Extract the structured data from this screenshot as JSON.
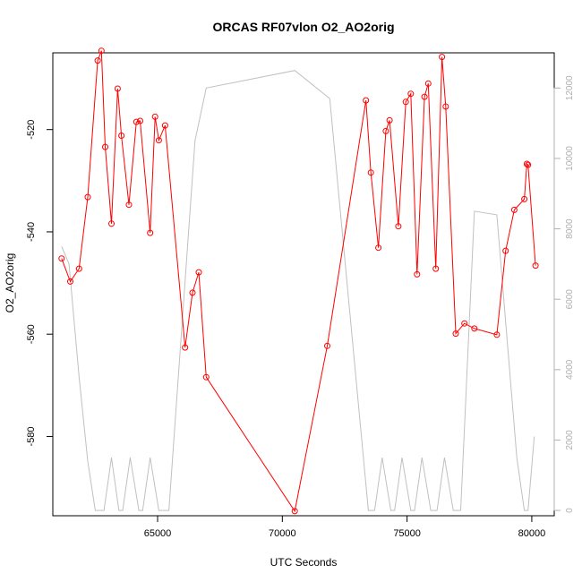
{
  "chart_data": {
    "type": "line",
    "title": "ORCAS RF07vlon O2_AO2orig",
    "xlabel": "UTC Seconds",
    "ylabel": "O2_AO2orig",
    "xlim": [
      60800,
      80900
    ],
    "ylim": [
      -595.5,
      -505.0
    ],
    "y2lim": [
      -150,
      13000
    ],
    "x_ticks": [
      65000,
      70000,
      75000,
      80000
    ],
    "y_ticks": [
      -520,
      -540,
      -560,
      -580
    ],
    "y2_ticks": [
      0,
      2000,
      4000,
      6000,
      8000,
      10000,
      12000
    ],
    "grid": false,
    "colors": {
      "primary": "#ff0000",
      "secondary": "#c0c0c0",
      "frame": "#000000"
    },
    "series": [
      {
        "axis": "left",
        "marker": "open-circle",
        "color": "#ff0000",
        "points": [
          [
            61150,
            -545.2
          ],
          [
            61500,
            -549.7
          ],
          [
            61850,
            -547.2
          ],
          [
            62200,
            -533.2
          ],
          [
            62600,
            -506.5
          ],
          [
            62750,
            -504.6
          ],
          [
            62900,
            -523.4
          ],
          [
            63150,
            -538.4
          ],
          [
            63400,
            -512.0
          ],
          [
            63550,
            -521.2
          ],
          [
            63850,
            -534.7
          ],
          [
            64150,
            -518.5
          ],
          [
            64300,
            -518.3
          ],
          [
            64700,
            -540.2
          ],
          [
            64900,
            -517.5
          ],
          [
            65050,
            -522.1
          ],
          [
            65300,
            -519.2
          ],
          [
            66100,
            -562.6
          ],
          [
            66400,
            -551.9
          ],
          [
            66650,
            -547.9
          ],
          [
            66950,
            -568.4
          ],
          [
            70500,
            -594.6
          ],
          [
            71800,
            -562.3
          ],
          [
            73350,
            -514.3
          ],
          [
            73550,
            -528.4
          ],
          [
            73850,
            -543.1
          ],
          [
            74150,
            -520.3
          ],
          [
            74300,
            -518.2
          ],
          [
            74650,
            -538.9
          ],
          [
            74950,
            -514.6
          ],
          [
            75150,
            -513.0
          ],
          [
            75400,
            -548.3
          ],
          [
            75700,
            -513.6
          ],
          [
            75850,
            -511.0
          ],
          [
            76150,
            -547.2
          ],
          [
            76400,
            -505.8
          ],
          [
            76550,
            -515.5
          ],
          [
            76950,
            -559.9
          ],
          [
            77300,
            -557.9
          ],
          [
            77700,
            -558.9
          ],
          [
            78600,
            -560.1
          ],
          [
            78950,
            -543.7
          ],
          [
            79300,
            -535.7
          ],
          [
            79700,
            -533.6
          ],
          [
            79800,
            -526.7
          ],
          [
            79850,
            -526.9
          ],
          [
            80150,
            -546.6
          ]
        ]
      },
      {
        "axis": "right",
        "marker": "none",
        "color": "#c0c0c0",
        "points": [
          [
            61150,
            7500
          ],
          [
            61450,
            7000
          ],
          [
            61850,
            3800
          ],
          [
            62200,
            1400
          ],
          [
            62500,
            0
          ],
          [
            62850,
            0
          ],
          [
            63150,
            1500
          ],
          [
            63450,
            0
          ],
          [
            63600,
            0
          ],
          [
            63900,
            1500
          ],
          [
            64250,
            0
          ],
          [
            64400,
            0
          ],
          [
            64700,
            1500
          ],
          [
            65050,
            0
          ],
          [
            65450,
            0
          ],
          [
            66500,
            10500
          ],
          [
            66950,
            12000
          ],
          [
            70500,
            12500
          ],
          [
            71900,
            11700
          ],
          [
            73450,
            0
          ],
          [
            73700,
            0
          ],
          [
            74000,
            1500
          ],
          [
            74350,
            0
          ],
          [
            74500,
            0
          ],
          [
            74800,
            1500
          ],
          [
            75150,
            0
          ],
          [
            75300,
            0
          ],
          [
            75600,
            1500
          ],
          [
            75950,
            0
          ],
          [
            76200,
            0
          ],
          [
            76500,
            1500
          ],
          [
            76850,
            0
          ],
          [
            77150,
            0
          ],
          [
            77700,
            8500
          ],
          [
            78600,
            8400
          ],
          [
            79400,
            1500
          ],
          [
            79700,
            0
          ],
          [
            79850,
            0
          ],
          [
            80100,
            2100
          ]
        ]
      }
    ]
  }
}
